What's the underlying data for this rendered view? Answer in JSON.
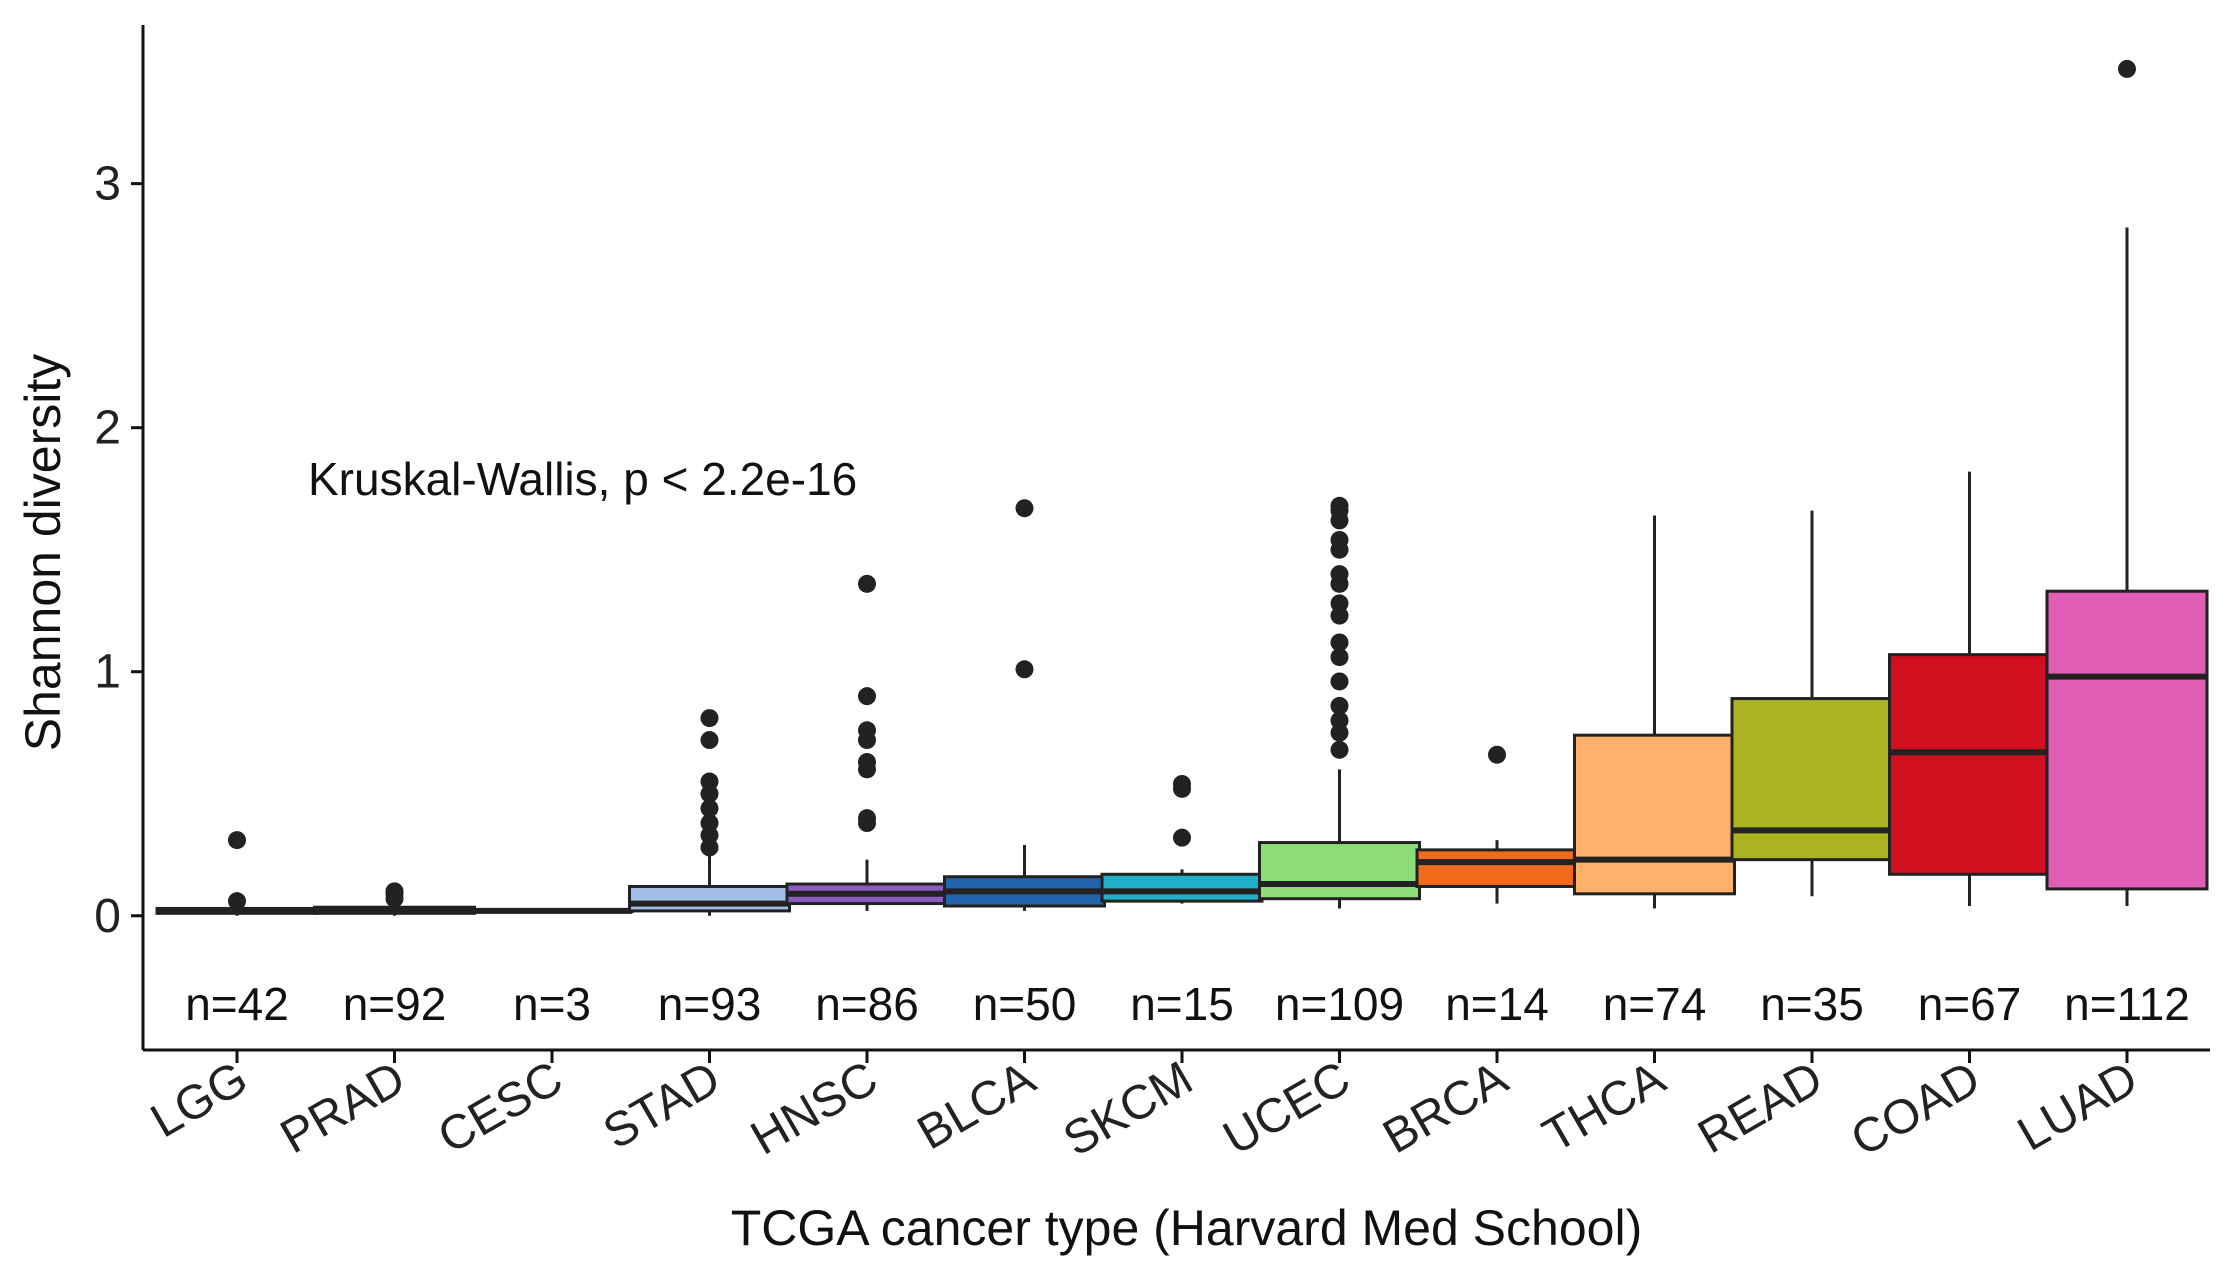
{
  "chart_data": {
    "type": "box",
    "xlabel": "TCGA cancer type (Harvard Med School)",
    "ylabel": "Shannon diversity",
    "ylim": [
      -0.55,
      3.65
    ],
    "yticks": [
      0,
      1,
      2,
      3
    ],
    "grid": false,
    "legend": "none",
    "annotation": "Kruskal-Wallis, p < 2.2e-16",
    "categories": [
      "LGG",
      "PRAD",
      "CESC",
      "STAD",
      "HNSC",
      "BLCA",
      "SKCM",
      "UCEC",
      "BRCA",
      "THCA",
      "READ",
      "COAD",
      "LUAD"
    ],
    "boxes": [
      {
        "name": "LGG",
        "n_label": "n=42",
        "color": "#cfcfcf",
        "min": 0.0,
        "q1": 0.01,
        "median": 0.02,
        "q3": 0.03,
        "max": 0.04,
        "outliers": [
          0.06,
          0.31
        ]
      },
      {
        "name": "PRAD",
        "n_label": "n=92",
        "color": "#cfcfcf",
        "min": 0.0,
        "q1": 0.01,
        "median": 0.02,
        "q3": 0.035,
        "max": 0.05,
        "outliers": [
          0.07,
          0.09,
          0.1
        ]
      },
      {
        "name": "CESC",
        "n_label": "n=3",
        "color": "#cfcfcf",
        "min": 0.015,
        "q1": 0.018,
        "median": 0.02,
        "q3": 0.025,
        "max": 0.03,
        "outliers": []
      },
      {
        "name": "STAD",
        "n_label": "n=93",
        "color": "#a3bee6",
        "min": 0.0,
        "q1": 0.02,
        "median": 0.05,
        "q3": 0.12,
        "max": 0.26,
        "outliers": [
          0.28,
          0.33,
          0.38,
          0.44,
          0.5,
          0.55,
          0.72,
          0.81
        ]
      },
      {
        "name": "HNSC",
        "n_label": "n=86",
        "color": "#8b5bbf",
        "min": 0.02,
        "q1": 0.05,
        "median": 0.09,
        "q3": 0.13,
        "max": 0.23,
        "outliers": [
          0.38,
          0.4,
          0.6,
          0.63,
          0.72,
          0.76,
          0.9,
          1.36
        ]
      },
      {
        "name": "BLCA",
        "n_label": "n=50",
        "color": "#2166ac",
        "min": 0.02,
        "q1": 0.04,
        "median": 0.1,
        "q3": 0.16,
        "max": 0.29,
        "outliers": [
          1.01,
          1.67
        ]
      },
      {
        "name": "SKCM",
        "n_label": "n=15",
        "color": "#1fb0c8",
        "min": 0.05,
        "q1": 0.06,
        "median": 0.1,
        "q3": 0.17,
        "max": 0.19,
        "outliers": [
          0.32,
          0.52,
          0.54
        ]
      },
      {
        "name": "UCEC",
        "n_label": "n=109",
        "color": "#8ddc7a",
        "min": 0.03,
        "q1": 0.07,
        "median": 0.13,
        "q3": 0.3,
        "max": 0.6,
        "outliers": [
          0.68,
          0.75,
          0.8,
          0.86,
          0.96,
          1.06,
          1.12,
          1.23,
          1.28,
          1.36,
          1.4,
          1.5,
          1.54,
          1.62,
          1.66,
          1.68
        ]
      },
      {
        "name": "BRCA",
        "n_label": "n=14",
        "color": "#f26a1b",
        "min": 0.05,
        "q1": 0.12,
        "median": 0.22,
        "q3": 0.27,
        "max": 0.31,
        "outliers": [
          0.66
        ]
      },
      {
        "name": "THCA",
        "n_label": "n=74",
        "color": "#ffb06b",
        "min": 0.03,
        "q1": 0.09,
        "median": 0.23,
        "q3": 0.74,
        "max": 1.64,
        "outliers": []
      },
      {
        "name": "READ",
        "n_label": "n=35",
        "color": "#aab421",
        "min": 0.08,
        "q1": 0.23,
        "median": 0.35,
        "q3": 0.89,
        "max": 1.66,
        "outliers": []
      },
      {
        "name": "COAD",
        "n_label": "n=67",
        "color": "#d0101e",
        "min": 0.04,
        "q1": 0.17,
        "median": 0.67,
        "q3": 1.07,
        "max": 1.82,
        "outliers": []
      },
      {
        "name": "LUAD",
        "n_label": "n=112",
        "color": "#e05eb5",
        "min": 0.04,
        "q1": 0.11,
        "median": 0.98,
        "q3": 1.33,
        "max": 2.82,
        "outliers": [
          3.47
        ]
      }
    ]
  }
}
